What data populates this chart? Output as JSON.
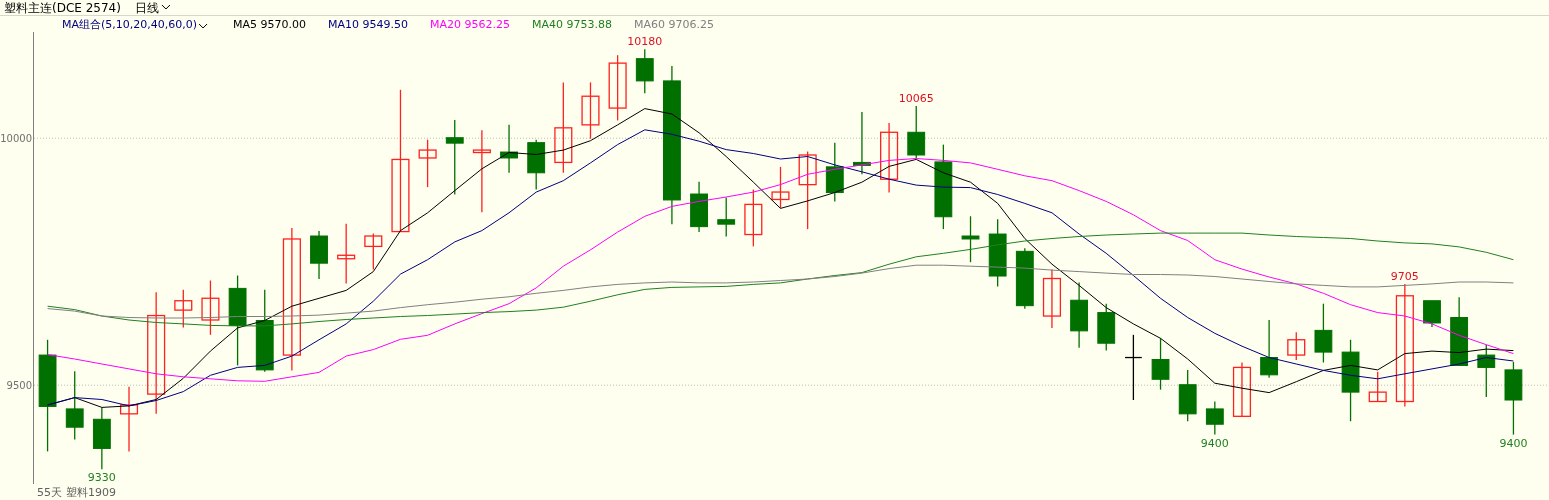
{
  "chart_data": {
    "type": "candlestick",
    "title": "塑料主连(DCE 2574)",
    "subtitle": "日线",
    "legend_title": "MA组合(5,10,20,40,60,0)",
    "legend": "top left",
    "grid": "y",
    "categories": [
      null,
      null,
      null,
      null,
      null,
      null,
      null,
      null,
      null,
      null,
      null,
      null,
      null,
      null,
      null,
      null,
      null,
      null,
      null,
      null,
      null,
      null,
      null,
      null,
      null,
      null,
      null,
      null,
      null,
      null,
      null,
      null,
      null,
      null,
      null,
      null,
      null,
      null,
      null,
      null,
      null,
      null,
      null,
      null,
      null,
      null,
      null,
      null,
      null,
      null,
      null,
      null,
      null,
      null,
      null
    ],
    "ohlc": [
      [
        9561,
        9592,
        9366,
        9457
      ],
      [
        9452,
        9528,
        9390,
        9415
      ],
      [
        9431,
        9455,
        9330,
        9372
      ],
      [
        9442,
        9497,
        9366,
        9460
      ],
      [
        9482,
        9688,
        9442,
        9641
      ],
      [
        9652,
        9693,
        9617,
        9671
      ],
      [
        9632,
        9712,
        9602,
        9676
      ],
      [
        9696,
        9722,
        9540,
        9621
      ],
      [
        9631,
        9693,
        9527,
        9531
      ],
      [
        9561,
        9818,
        9530,
        9796
      ],
      [
        9802,
        9812,
        9715,
        9747
      ],
      [
        9756,
        9827,
        9706,
        9763
      ],
      [
        9781,
        9807,
        9734,
        9802
      ],
      [
        9811,
        10098,
        9811,
        9957
      ],
      [
        9960,
        9997,
        9901,
        9976
      ],
      [
        10001,
        10037,
        9886,
        9990
      ],
      [
        9971,
        10016,
        9850,
        9976
      ],
      [
        9972,
        10027,
        9930,
        9960
      ],
      [
        9991,
        9997,
        9896,
        9930
      ],
      [
        9951,
        10113,
        9930,
        10021
      ],
      [
        10027,
        10113,
        9999,
        10085
      ],
      [
        10061,
        10168,
        10036,
        10152
      ],
      [
        10161,
        10180,
        10091,
        10116
      ],
      [
        10116,
        10146,
        9826,
        9875
      ],
      [
        9887,
        9912,
        9810,
        9821
      ],
      [
        9835,
        9880,
        9801,
        9826
      ],
      [
        9805,
        9896,
        9781,
        9866
      ],
      [
        9876,
        9942,
        9859,
        9891
      ],
      [
        9906,
        9973,
        9816,
        9966
      ],
      [
        9942,
        9991,
        9872,
        9890
      ],
      [
        9951,
        10053,
        9927,
        9945
      ],
      [
        9917,
        10031,
        9890,
        10012
      ],
      [
        10012,
        10065,
        9960,
        9966
      ],
      [
        9952,
        9987,
        9816,
        9841
      ],
      [
        9802,
        9842,
        9749,
        9796
      ],
      [
        9806,
        9836,
        9700,
        9721
      ],
      [
        9771,
        9777,
        9655,
        9661
      ],
      [
        9640,
        9734,
        9616,
        9716
      ],
      [
        9672,
        9708,
        9576,
        9610
      ],
      [
        9647,
        9665,
        9570,
        9585
      ],
      [
        9556,
        9602,
        9470,
        9556
      ],
      [
        9552,
        9595,
        9491,
        9512
      ],
      [
        9501,
        9531,
        9427,
        9442
      ],
      [
        9452,
        9467,
        9400,
        9421
      ],
      [
        9437,
        9546,
        9437,
        9536
      ],
      [
        9556,
        9632,
        9515,
        9521
      ],
      [
        9561,
        9607,
        9551,
        9592
      ],
      [
        9611,
        9665,
        9546,
        9567
      ],
      [
        9567,
        9592,
        9427,
        9486
      ],
      [
        9467,
        9527,
        9467,
        9486
      ],
      [
        9467,
        9705,
        9457,
        9681
      ],
      [
        9671,
        9671,
        9618,
        9626
      ],
      [
        9637,
        9678,
        9540,
        9540
      ],
      [
        9561,
        9582,
        9476,
        9536
      ],
      [
        9531,
        9547,
        9400,
        9470
      ]
    ],
    "colors": [
      "#007000",
      "#007000",
      "#007000",
      "#ff2020",
      "#ff2020",
      "#ff2020",
      "#ff2020",
      "#007000",
      "#007000",
      "#ff2020",
      "#007000",
      "#ff2020",
      "#ff2020",
      "#ff2020",
      "#ff2020",
      "#007000",
      "#ff2020",
      "#007000",
      "#007000",
      "#ff2020",
      "#ff2020",
      "#ff2020",
      "#007000",
      "#007000",
      "#007000",
      "#007000",
      "#ff2020",
      "#ff2020",
      "#ff2020",
      "#007000",
      "#007000",
      "#ff2020",
      "#007000",
      "#007000",
      "#007000",
      "#007000",
      "#007000",
      "#ff2020",
      "#007000",
      "#007000",
      "#000000",
      "#007000",
      "#007000",
      "#007000",
      "#ff2020",
      "#007000",
      "#ff2020",
      "#007000",
      "#007000",
      "#ff2020",
      "#ff2020",
      "#007000",
      "#007000",
      "#007000",
      "#007000"
    ],
    "series": [
      {
        "type": "line",
        "name": "MA5 9570.00",
        "color": "#000000",
        "values": [
          9460,
          9475,
          9455,
          9458,
          9471,
          9514,
          9569,
          9616,
          9631,
          9660,
          9676,
          9692,
          9730,
          9813,
          9849,
          9894,
          9938,
          9971,
          9967,
          9976,
          9995,
          10027,
          10060,
          10049,
          10011,
          9963,
          9911,
          9858,
          9873,
          9890,
          9911,
          9943,
          9957,
          9930,
          9911,
          9868,
          9797,
          9745,
          9702,
          9657,
          9624,
          9595,
          9553,
          9504,
          9494,
          9485,
          9507,
          9530,
          9540,
          9531,
          9564,
          9569,
          9566,
          9573,
          9570
        ]
      },
      {
        "type": "line",
        "name": "MA10 9549.50",
        "color": "#000080",
        "values": [
          9460,
          9475,
          9471,
          9458,
          9469,
          9487,
          9520,
          9536,
          9540,
          9559,
          9592,
          9624,
          9670,
          9725,
          9754,
          9790,
          9813,
          9849,
          9891,
          9914,
          9950,
          9987,
          10017,
          10008,
          9994,
          9977,
          9969,
          9958,
          9963,
          9946,
          9932,
          9917,
          9905,
          9901,
          9900,
          9886,
          9868,
          9849,
          9806,
          9767,
          9722,
          9676,
          9637,
          9605,
          9579,
          9556,
          9543,
          9530,
          9520,
          9513,
          9523,
          9533,
          9543,
          9556,
          9549
        ]
      },
      {
        "type": "line",
        "name": "MA20 9562.25",
        "color": "#ff00ff",
        "values": [
          9562,
          9553,
          9543,
          9533,
          9523,
          9517,
          9513,
          9509,
          9508,
          9517,
          9526,
          9559,
          9572,
          9593,
          9601,
          9624,
          9645,
          9665,
          9697,
          9741,
          9774,
          9810,
          9842,
          9862,
          9872,
          9881,
          9891,
          9906,
          9927,
          9937,
          9946,
          9955,
          9959,
          9955,
          9950,
          9937,
          9924,
          9914,
          9894,
          9872,
          9845,
          9813,
          9793,
          9754,
          9735,
          9719,
          9705,
          9686,
          9663,
          9647,
          9640,
          9624,
          9601,
          9582,
          9564
        ]
      },
      {
        "type": "line",
        "name": "MA40 9753.88",
        "color": "#208020",
        "values": [
          9660,
          9653,
          9640,
          9632,
          9627,
          9624,
          9621,
          9620,
          9620,
          9624,
          9629,
          9633,
          9636,
          9639,
          9641,
          9644,
          9647,
          9649,
          9652,
          9658,
          9670,
          9683,
          9694,
          9698,
          9699,
          9700,
          9704,
          9707,
          9715,
          9722,
          9728,
          9745,
          9760,
          9767,
          9775,
          9784,
          9792,
          9797,
          9801,
          9804,
          9806,
          9808,
          9808,
          9808,
          9808,
          9804,
          9801,
          9799,
          9797,
          9792,
          9788,
          9786,
          9780,
          9769,
          9754
        ]
      },
      {
        "type": "line",
        "name": "MA60 9706.25",
        "color": "#808080",
        "values": [
          9655,
          9650,
          9640,
          9637,
          9636,
          9636,
          9637,
          9639,
          9639,
          9640,
          9642,
          9646,
          9650,
          9657,
          9663,
          9668,
          9674,
          9679,
          9686,
          9692,
          9699,
          9704,
          9707,
          9709,
          9707,
          9707,
          9709,
          9712,
          9715,
          9720,
          9727,
          9736,
          9743,
          9743,
          9741,
          9739,
          9737,
          9733,
          9730,
          9727,
          9724,
          9724,
          9723,
          9720,
          9715,
          9710,
          9705,
          9702,
          9699,
          9699,
          9702,
          9705,
          9709,
          9709,
          9707
        ]
      }
    ],
    "ylim": [
      9300,
      10215
    ],
    "yticks": [
      10000,
      9500
    ],
    "annotations": [
      {
        "text": "10180",
        "y": 10180
      },
      {
        "text": "10065",
        "y": 10065
      },
      {
        "text": "9705",
        "y": 9705
      },
      {
        "text": "9330",
        "y": 9330
      },
      {
        "text": "9400",
        "y": 9400
      },
      {
        "text": "9400",
        "y": 9400
      },
      "55天",
      "塑料1909"
    ]
  }
}
